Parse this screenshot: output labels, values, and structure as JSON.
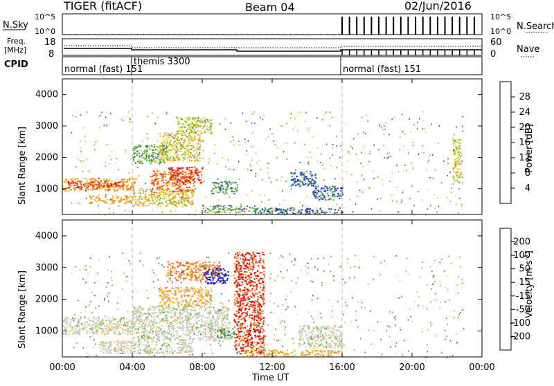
{
  "header": {
    "title": "TIGER (fitACF)",
    "beam": "Beam 04",
    "date": "02/Jun/2016"
  },
  "strip_panels": {
    "nsky_label": "N.Sky",
    "nsky_ticks": [
      "10^5",
      "10^0"
    ],
    "nsearch_label": "N.Search",
    "nsearch_ticks": [
      "10^5",
      "10^0"
    ],
    "freq_label_line1": "Freq.",
    "freq_label_line2": "[MHz]",
    "freq_ticks": [
      "18",
      "8"
    ],
    "nave_label": "Nave",
    "nave_ticks": [
      "60",
      "0"
    ],
    "cpid_label": "CPID",
    "cpid_segments": [
      {
        "label": "normal (fast) 151",
        "start_hour": 0,
        "end_hour": 4
      },
      {
        "label": "themis 3300",
        "start_hour": 4,
        "end_hour": 16
      },
      {
        "label": "normal (fast) 151",
        "start_hour": 16,
        "end_hour": 24
      }
    ]
  },
  "panels": {
    "y_axis_label": "Slant Range [km]",
    "y_ticks": [
      "1000",
      "2000",
      "3000",
      "4000"
    ],
    "x_axis_label": "Time UT",
    "x_ticks": [
      "00:00",
      "04:00",
      "08:00",
      "12:00",
      "16:00",
      "20:00",
      "00:00"
    ]
  },
  "power_colorbar": {
    "label": "Power [dB]",
    "ticks": [
      "4",
      "8",
      "12",
      "16",
      "20",
      "24",
      "28"
    ],
    "colors": [
      "#1a1aff",
      "#2c4fb0",
      "#2e8b57",
      "#5fae3c",
      "#b9d23a",
      "#f3c21f",
      "#f39a1a",
      "#f26a16",
      "#e63b12",
      "#e10f0f"
    ]
  },
  "velocity_colorbar": {
    "label": "Velocity [m s",
    "label_sup": "-1",
    "label_end": "]",
    "ticks": [
      "200",
      "100",
      "50",
      "15",
      "-15",
      "-50",
      "-100",
      "-200"
    ],
    "colors": [
      "#1a1fbf",
      "#2a6a9a",
      "#2e8b57",
      "#6cc04a",
      "#c8c8c0",
      "#f3c02a",
      "#f59a20",
      "#f06a18",
      "#e83010",
      "#e00000"
    ]
  },
  "chart_data": {
    "type": "heatmap",
    "x_range_hours": [
      0,
      24
    ],
    "y_range_km": [
      180,
      4500
    ],
    "gridlines_dashed_at_hours": [
      4,
      16
    ],
    "power_blobs": [
      {
        "t0": 0.0,
        "t1": 4.2,
        "r0": 950,
        "r1": 1350,
        "db": 20
      },
      {
        "t0": 0.3,
        "t1": 3.5,
        "r0": 1050,
        "r1": 1250,
        "db": 26
      },
      {
        "t0": 1.5,
        "t1": 4.0,
        "r0": 550,
        "r1": 800,
        "db": 18
      },
      {
        "t0": 4.0,
        "t1": 7.5,
        "r0": 450,
        "r1": 1000,
        "db": 16
      },
      {
        "t0": 5.0,
        "t1": 7.5,
        "r0": 900,
        "r1": 1600,
        "db": 22
      },
      {
        "t0": 6.0,
        "t1": 8.0,
        "r0": 1200,
        "r1": 1700,
        "db": 26
      },
      {
        "t0": 4.0,
        "t1": 6.0,
        "r0": 1800,
        "r1": 2400,
        "db": 10
      },
      {
        "t0": 5.5,
        "t1": 8.0,
        "r0": 1900,
        "r1": 2800,
        "db": 15
      },
      {
        "t0": 6.5,
        "t1": 8.5,
        "r0": 2800,
        "r1": 3300,
        "db": 13
      },
      {
        "t0": 8.5,
        "t1": 10.0,
        "r0": 850,
        "r1": 1250,
        "db": 8
      },
      {
        "t0": 8.0,
        "t1": 11.0,
        "r0": 250,
        "r1": 500,
        "db": 10
      },
      {
        "t0": 13.0,
        "t1": 14.5,
        "r0": 1100,
        "r1": 1600,
        "db": 5
      },
      {
        "t0": 14.3,
        "t1": 16.0,
        "r0": 650,
        "r1": 1100,
        "db": 6
      },
      {
        "t0": 11.0,
        "t1": 16.0,
        "r0": 220,
        "r1": 420,
        "db": 6
      },
      {
        "t0": 22.3,
        "t1": 22.8,
        "r0": 1200,
        "r1": 2600,
        "db": 16
      }
    ],
    "velocity_blobs": [
      {
        "t0": 0.0,
        "t1": 4.0,
        "r0": 900,
        "r1": 1450,
        "v": 0
      },
      {
        "t0": 4.0,
        "t1": 9.5,
        "r0": 700,
        "r1": 1800,
        "v": 0
      },
      {
        "t0": 5.5,
        "t1": 8.5,
        "r0": 1800,
        "r1": 2400,
        "v": -30
      },
      {
        "t0": 6.0,
        "t1": 9.0,
        "r0": 2600,
        "r1": 3200,
        "v": -80
      },
      {
        "t0": 8.0,
        "t1": 9.5,
        "r0": 2500,
        "r1": 3000,
        "v": 210
      },
      {
        "t0": 8.8,
        "t1": 10.0,
        "r0": 800,
        "r1": 1100,
        "v": 40
      },
      {
        "t0": 2.0,
        "t1": 7.5,
        "r0": 300,
        "r1": 700,
        "v": 0
      },
      {
        "t0": 10.5,
        "t1": 16.0,
        "r0": 220,
        "r1": 420,
        "v": -40
      },
      {
        "t0": 13.5,
        "t1": 16.0,
        "r0": 500,
        "r1": 1200,
        "v": 0
      },
      {
        "t0": 9.8,
        "t1": 11.5,
        "r0": 300,
        "r1": 3500,
        "v": -150
      }
    ]
  }
}
